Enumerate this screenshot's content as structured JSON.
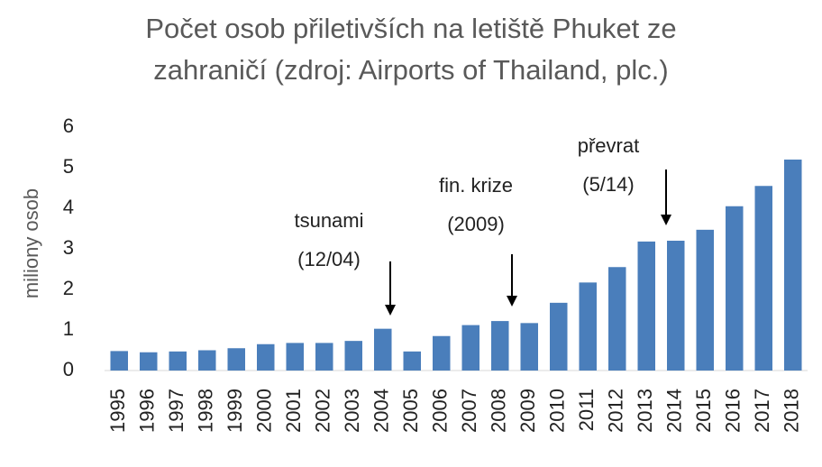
{
  "chart_data": {
    "type": "bar",
    "title": [
      "Počet osob přiletivších na letiště Phuket ze",
      "zahraničí (zdroj: Airports of Thailand, plc.)"
    ],
    "y_label": "miliony osob",
    "categories": [
      "1995",
      "1996",
      "1997",
      "1998",
      "1999",
      "2000",
      "2001",
      "2002",
      "2003",
      "2004",
      "2005",
      "2006",
      "2007",
      "2008",
      "2009",
      "2010",
      "2011",
      "2012",
      "2013",
      "2014",
      "2015",
      "2016",
      "2017",
      "2018"
    ],
    "values": [
      0.48,
      0.45,
      0.47,
      0.5,
      0.55,
      0.65,
      0.68,
      0.68,
      0.73,
      1.03,
      0.47,
      0.85,
      1.12,
      1.22,
      1.17,
      1.67,
      2.17,
      2.55,
      3.18,
      3.2,
      3.47,
      4.05,
      4.55,
      5.2
    ],
    "color": "#4a7ebb",
    "ylim": [
      0,
      6
    ],
    "yticks": [
      0,
      1,
      2,
      3,
      4,
      5,
      6
    ],
    "grid": false,
    "annotations": [
      {
        "lines": [
          "tsunami",
          "(12/04)"
        ]
      },
      {
        "lines": [
          "fin. krize",
          "(2009)"
        ]
      },
      {
        "lines": [
          "převrat",
          "(5/14)"
        ]
      }
    ]
  }
}
